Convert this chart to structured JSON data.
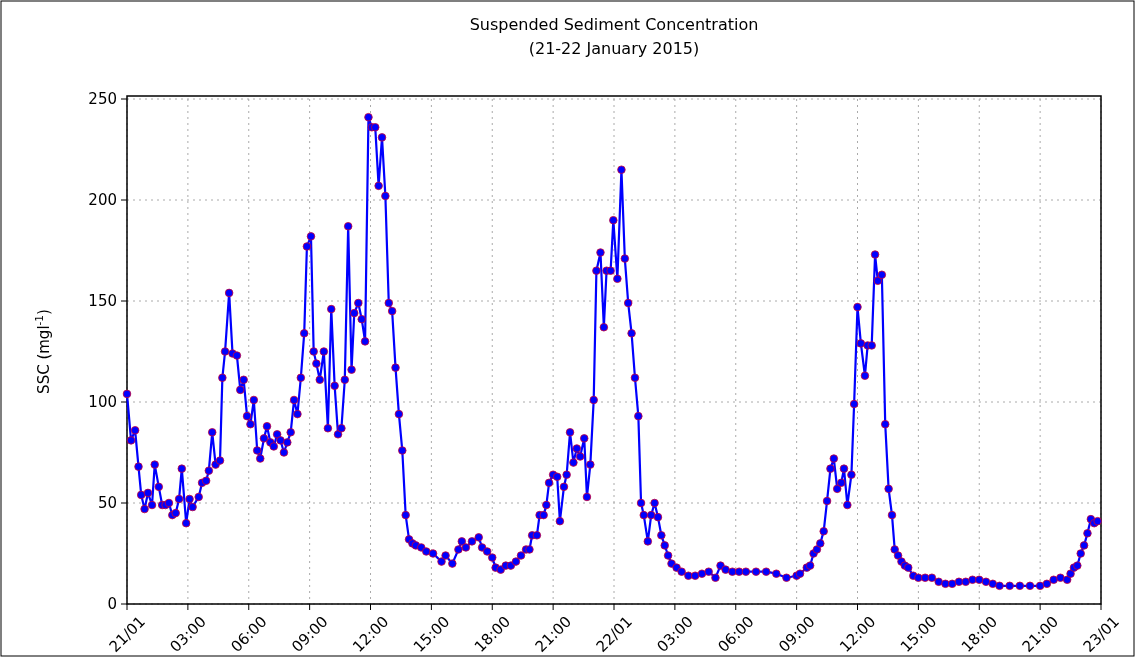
{
  "chart_data": {
    "type": "line",
    "title": "Suspended Sediment Concentration",
    "subtitle": "(21-22 January 2015)",
    "ylabel": "SSC (mgl$^{-1}$)",
    "xlim": [
      "2015-01-21T00:00",
      "2015-01-23T00:00"
    ],
    "xticks": [
      {
        "value": "2015-01-21T00:00",
        "label": "21/01"
      },
      {
        "value": "2015-01-21T03:00",
        "label": "03:00"
      },
      {
        "value": "2015-01-21T06:00",
        "label": "06:00"
      },
      {
        "value": "2015-01-21T09:00",
        "label": "09:00"
      },
      {
        "value": "2015-01-21T12:00",
        "label": "12:00"
      },
      {
        "value": "2015-01-21T15:00",
        "label": "15:00"
      },
      {
        "value": "2015-01-21T18:00",
        "label": "18:00"
      },
      {
        "value": "2015-01-21T21:00",
        "label": "21:00"
      },
      {
        "value": "2015-01-22T00:00",
        "label": "22/01"
      },
      {
        "value": "2015-01-22T03:00",
        "label": "03:00"
      },
      {
        "value": "2015-01-22T06:00",
        "label": "06:00"
      },
      {
        "value": "2015-01-22T09:00",
        "label": "09:00"
      },
      {
        "value": "2015-01-22T12:00",
        "label": "12:00"
      },
      {
        "value": "2015-01-22T15:00",
        "label": "15:00"
      },
      {
        "value": "2015-01-22T18:00",
        "label": "18:00"
      },
      {
        "value": "2015-01-22T21:00",
        "label": "21:00"
      },
      {
        "value": "2015-01-23T00:00",
        "label": "23/01"
      }
    ],
    "ylim": [
      0,
      250
    ],
    "yticks": [
      0,
      50,
      100,
      150,
      200,
      250
    ],
    "grid": true,
    "marker": "circle",
    "line_style": "solid",
    "series": [
      {
        "color": "#0000ff",
        "x": [
          "2015-01-21T00:00",
          "2015-01-21T00:12",
          "2015-01-21T00:24",
          "2015-01-21T00:34",
          "2015-01-21T00:42",
          "2015-01-21T00:52",
          "2015-01-21T01:02",
          "2015-01-21T01:14",
          "2015-01-21T01:22",
          "2015-01-21T01:34",
          "2015-01-21T01:44",
          "2015-01-21T01:54",
          "2015-01-21T02:04",
          "2015-01-21T02:14",
          "2015-01-21T02:24",
          "2015-01-21T02:34",
          "2015-01-21T02:42",
          "2015-01-21T02:55",
          "2015-01-21T03:05",
          "2015-01-21T03:14",
          "2015-01-21T03:32",
          "2015-01-21T03:42",
          "2015-01-21T03:54",
          "2015-01-21T04:02",
          "2015-01-21T04:12",
          "2015-01-21T04:22",
          "2015-01-21T04:35",
          "2015-01-21T04:42",
          "2015-01-21T04:50",
          "2015-01-21T05:02",
          "2015-01-21T05:12",
          "2015-01-21T05:25",
          "2015-01-21T05:35",
          "2015-01-21T05:45",
          "2015-01-21T05:55",
          "2015-01-21T06:05",
          "2015-01-21T06:15",
          "2015-01-21T06:25",
          "2015-01-21T06:34",
          "2015-01-21T06:45",
          "2015-01-21T06:54",
          "2015-01-21T07:04",
          "2015-01-21T07:14",
          "2015-01-21T07:24",
          "2015-01-21T07:34",
          "2015-01-21T07:44",
          "2015-01-21T07:54",
          "2015-01-21T08:04",
          "2015-01-21T08:14",
          "2015-01-21T08:24",
          "2015-01-21T08:34",
          "2015-01-21T08:44",
          "2015-01-21T08:52",
          "2015-01-21T09:04",
          "2015-01-21T09:12",
          "2015-01-21T09:20",
          "2015-01-21T09:30",
          "2015-01-21T09:42",
          "2015-01-21T09:54",
          "2015-01-21T10:04",
          "2015-01-21T10:14",
          "2015-01-21T10:24",
          "2015-01-21T10:34",
          "2015-01-21T10:44",
          "2015-01-21T10:54",
          "2015-01-21T11:04",
          "2015-01-21T11:12",
          "2015-01-21T11:24",
          "2015-01-21T11:34",
          "2015-01-21T11:44",
          "2015-01-21T11:54",
          "2015-01-21T12:04",
          "2015-01-21T12:14",
          "2015-01-21T12:24",
          "2015-01-21T12:34",
          "2015-01-21T12:44",
          "2015-01-21T12:54",
          "2015-01-21T13:04",
          "2015-01-21T13:14",
          "2015-01-21T13:24",
          "2015-01-21T13:34",
          "2015-01-21T13:44",
          "2015-01-21T13:54",
          "2015-01-21T14:04",
          "2015-01-21T14:14",
          "2015-01-21T14:30",
          "2015-01-21T14:45",
          "2015-01-21T15:05",
          "2015-01-21T15:30",
          "2015-01-21T15:42",
          "2015-01-21T16:02",
          "2015-01-21T16:20",
          "2015-01-21T16:30",
          "2015-01-21T16:42",
          "2015-01-21T17:00",
          "2015-01-21T17:20",
          "2015-01-21T17:30",
          "2015-01-21T17:45",
          "2015-01-21T18:00",
          "2015-01-21T18:10",
          "2015-01-21T18:25",
          "2015-01-21T18:40",
          "2015-01-21T18:55",
          "2015-01-21T19:10",
          "2015-01-21T19:25",
          "2015-01-21T19:40",
          "2015-01-21T19:50",
          "2015-01-21T19:58",
          "2015-01-21T20:12",
          "2015-01-21T20:20",
          "2015-01-21T20:32",
          "2015-01-21T20:40",
          "2015-01-21T20:48",
          "2015-01-21T21:00",
          "2015-01-21T21:12",
          "2015-01-21T21:20",
          "2015-01-21T21:32",
          "2015-01-21T21:40",
          "2015-01-21T21:50",
          "2015-01-21T22:00",
          "2015-01-21T22:10",
          "2015-01-21T22:20",
          "2015-01-21T22:32",
          "2015-01-21T22:40",
          "2015-01-21T22:50",
          "2015-01-21T23:00",
          "2015-01-21T23:08",
          "2015-01-21T23:20",
          "2015-01-21T23:30",
          "2015-01-21T23:38",
          "2015-01-21T23:50",
          "2015-01-21T23:58",
          "2015-01-22T00:10",
          "2015-01-22T00:22",
          "2015-01-22T00:32",
          "2015-01-22T00:42",
          "2015-01-22T00:52",
          "2015-01-22T01:02",
          "2015-01-22T01:12",
          "2015-01-22T01:20",
          "2015-01-22T01:28",
          "2015-01-22T01:40",
          "2015-01-22T01:50",
          "2015-01-22T02:00",
          "2015-01-22T02:10",
          "2015-01-22T02:20",
          "2015-01-22T02:30",
          "2015-01-22T02:40",
          "2015-01-22T02:50",
          "2015-01-22T03:05",
          "2015-01-22T03:20",
          "2015-01-22T03:40",
          "2015-01-22T04:00",
          "2015-01-22T04:20",
          "2015-01-22T04:40",
          "2015-01-22T05:00",
          "2015-01-22T05:15",
          "2015-01-22T05:30",
          "2015-01-22T05:50",
          "2015-01-22T06:10",
          "2015-01-22T06:30",
          "2015-01-22T07:00",
          "2015-01-22T07:30",
          "2015-01-22T08:00",
          "2015-01-22T08:30",
          "2015-01-22T09:00",
          "2015-01-22T09:10",
          "2015-01-22T09:30",
          "2015-01-22T09:40",
          "2015-01-22T09:50",
          "2015-01-22T10:00",
          "2015-01-22T10:10",
          "2015-01-22T10:20",
          "2015-01-22T10:30",
          "2015-01-22T10:40",
          "2015-01-22T10:50",
          "2015-01-22T11:00",
          "2015-01-22T11:12",
          "2015-01-22T11:20",
          "2015-01-22T11:30",
          "2015-01-22T11:42",
          "2015-01-22T11:50",
          "2015-01-22T12:00",
          "2015-01-22T12:10",
          "2015-01-22T12:22",
          "2015-01-22T12:30",
          "2015-01-22T12:42",
          "2015-01-22T12:52",
          "2015-01-22T13:00",
          "2015-01-22T13:12",
          "2015-01-22T13:22",
          "2015-01-22T13:32",
          "2015-01-22T13:42",
          "2015-01-22T13:50",
          "2015-01-22T14:00",
          "2015-01-22T14:10",
          "2015-01-22T14:20",
          "2015-01-22T14:30",
          "2015-01-22T14:45",
          "2015-01-22T15:00",
          "2015-01-22T15:20",
          "2015-01-22T15:40",
          "2015-01-22T16:00",
          "2015-01-22T16:20",
          "2015-01-22T16:40",
          "2015-01-22T17:00",
          "2015-01-22T17:20",
          "2015-01-22T17:40",
          "2015-01-22T18:00",
          "2015-01-22T18:20",
          "2015-01-22T18:40",
          "2015-01-22T19:00",
          "2015-01-22T19:30",
          "2015-01-22T20:00",
          "2015-01-22T20:30",
          "2015-01-22T21:00",
          "2015-01-22T21:20",
          "2015-01-22T21:40",
          "2015-01-22T22:00",
          "2015-01-22T22:20",
          "2015-01-22T22:30",
          "2015-01-22T22:40",
          "2015-01-22T22:50",
          "2015-01-22T23:00",
          "2015-01-22T23:10",
          "2015-01-22T23:20",
          "2015-01-22T23:30",
          "2015-01-22T23:40",
          "2015-01-22T23:50"
        ],
        "values": [
          104,
          81,
          86,
          68,
          54,
          47,
          55,
          49,
          69,
          58,
          49,
          49,
          50,
          44,
          45,
          52,
          67,
          40,
          52,
          48,
          53,
          60,
          61,
          66,
          85,
          69,
          71,
          112,
          125,
          154,
          124,
          123,
          106,
          111,
          93,
          89,
          101,
          76,
          72,
          82,
          88,
          80,
          78,
          84,
          81,
          75,
          80,
          85,
          101,
          94,
          112,
          134,
          177,
          182,
          125,
          119,
          111,
          125,
          87,
          146,
          108,
          84,
          87,
          111,
          187,
          116,
          144,
          149,
          141,
          130,
          241,
          236,
          236,
          207,
          231,
          202,
          149,
          145,
          117,
          94,
          76,
          44,
          32,
          30,
          29,
          28,
          26,
          25,
          21,
          24,
          20,
          27,
          31,
          28,
          31,
          33,
          28,
          26,
          23,
          18,
          17,
          19,
          19,
          21,
          24,
          27,
          27,
          34,
          34,
          44,
          44,
          49,
          60,
          64,
          63,
          41,
          58,
          64,
          85,
          70,
          77,
          73,
          82,
          53,
          69,
          101,
          165,
          174,
          137,
          165,
          165,
          190,
          161,
          215,
          171,
          149,
          134,
          112,
          93,
          50,
          44,
          31,
          44,
          50,
          43,
          34,
          29,
          24,
          20,
          18,
          16,
          14,
          14,
          15,
          16,
          13,
          19,
          17,
          16,
          16,
          16,
          16,
          16,
          15,
          13,
          14,
          15,
          18,
          19,
          25,
          27,
          30,
          36,
          51,
          67,
          72,
          57,
          60,
          67,
          49,
          64,
          99,
          147,
          129,
          113,
          128,
          128,
          173,
          160,
          163,
          89,
          57,
          44,
          27,
          24,
          21,
          19,
          18,
          14,
          13,
          13,
          13,
          11,
          10,
          10,
          11,
          11,
          12,
          12,
          11,
          10,
          9,
          9,
          9,
          9,
          9,
          10,
          12,
          13,
          12,
          15,
          18,
          19,
          25,
          29,
          35,
          42,
          40,
          41
        ]
      }
    ]
  }
}
